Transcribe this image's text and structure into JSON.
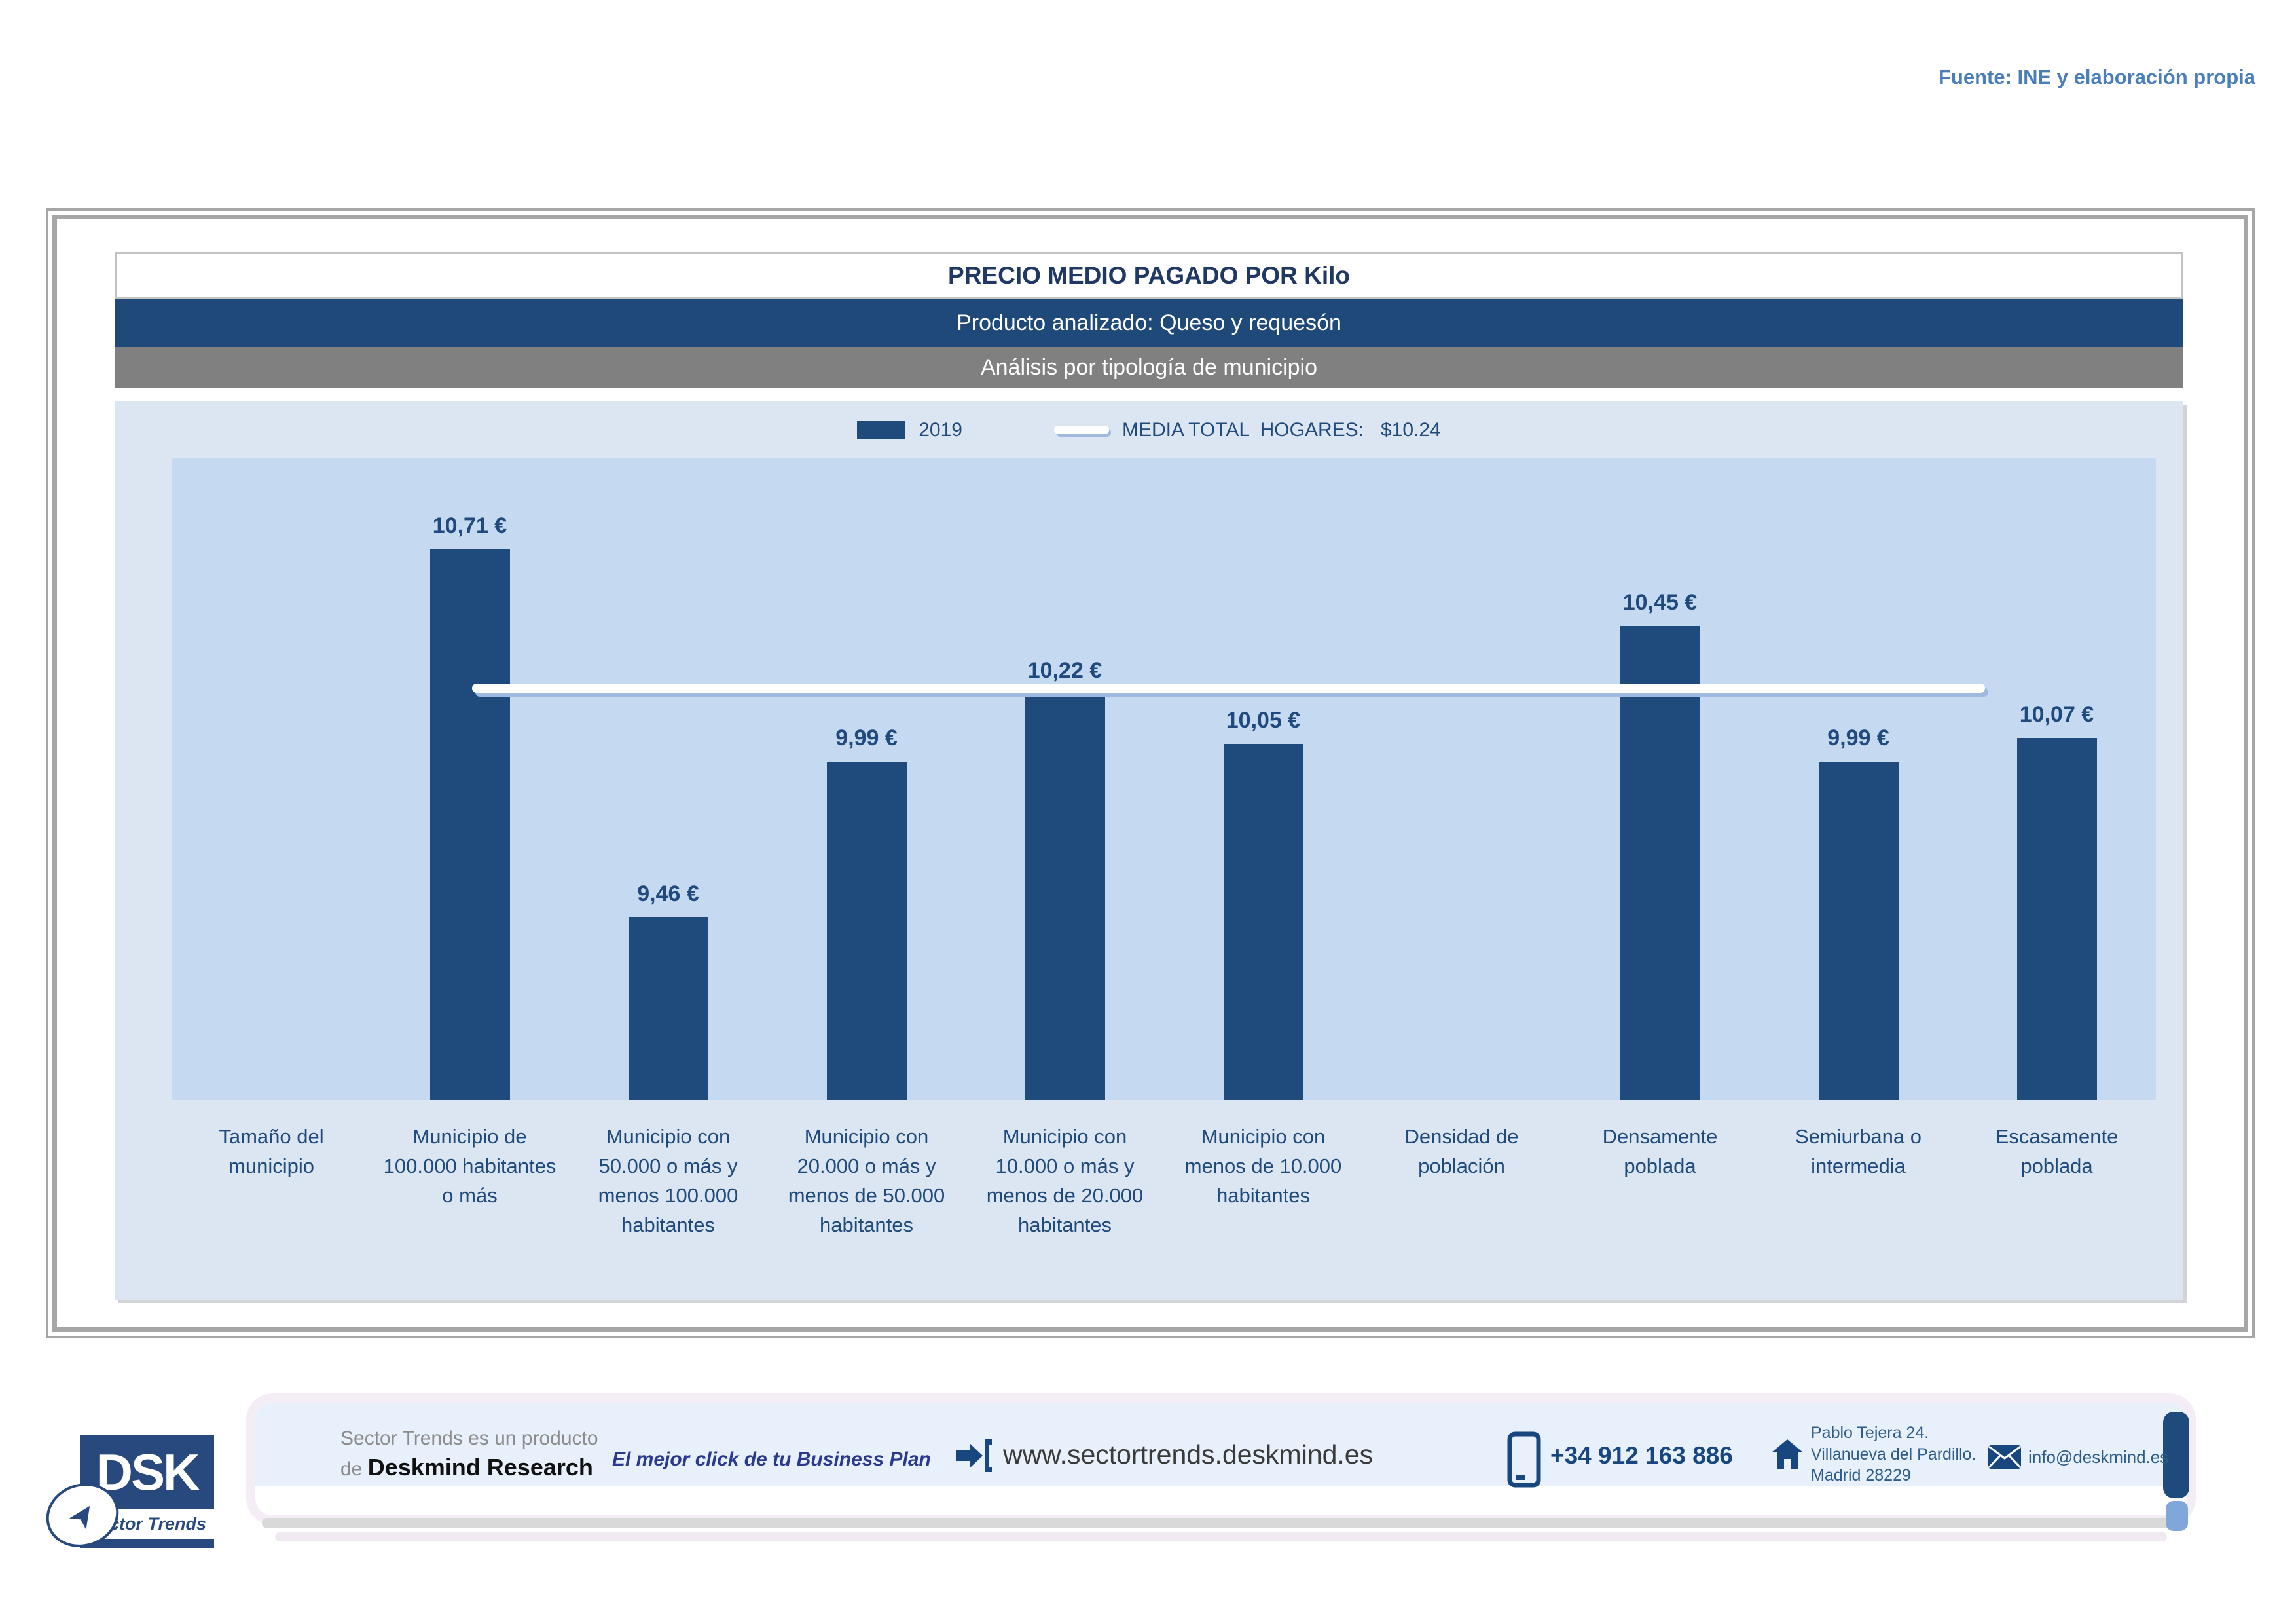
{
  "source_note": "Fuente: INE y elaboración propia",
  "report": {
    "title": "PRECIO MEDIO PAGADO POR Kilo",
    "subtitle_product": "Producto analizado: Queso y requesón",
    "subtitle_analysis": "Análisis por tipología de municipio"
  },
  "legend": {
    "series_label": "2019",
    "media_label": "MEDIA TOTAL  HOGARES:",
    "media_value": "$10.24"
  },
  "chart_data": {
    "type": "bar",
    "title": "PRECIO MEDIO PAGADO POR Kilo",
    "xlabel": "",
    "ylabel": "",
    "ylim": [
      8.84,
      11.02
    ],
    "grid": false,
    "legend_position": "top",
    "categories": [
      "Tamaño del municipio",
      "Municipio de 100.000 habitantes o más",
      "Municipio con 50.000 o más y menos 100.000 habitantes",
      "Municipio con 20.000 o más y menos de 50.000 habitantes",
      "Municipio con 10.000 o más y menos de 20.000 habitantes",
      "Municipio con menos de 10.000 habitantes",
      "Densidad de población",
      "Densamente poblada",
      "Semiurbana o intermedia",
      "Escasamente poblada"
    ],
    "series": [
      {
        "name": "2019",
        "values": [
          null,
          10.71,
          9.46,
          9.99,
          10.22,
          10.05,
          null,
          10.45,
          9.99,
          10.07
        ]
      }
    ],
    "value_labels": [
      "",
      "10,71 €",
      "9,46 €",
      "9,99 €",
      "10,22 €",
      "10,05 €",
      "",
      "10,45 €",
      "9,99 €",
      "10,07 €"
    ],
    "reference_line": {
      "name": "MEDIA TOTAL HOGARES",
      "value": 10.24,
      "label": "$10.24"
    },
    "colors": {
      "bar": "#1f4a7c",
      "plot_bg": "#c5d9f1",
      "chart_bg": "#dce6f2",
      "reference_line": "#ffffff"
    }
  },
  "footer": {
    "logo": {
      "acronym": "DSK",
      "brand": "Sector Trends",
      "plane_glyph": "➤"
    },
    "product_line1": "Sector Trends es un producto",
    "product_line2_prefix": "de ",
    "product_line2_bold": "Deskmind Research",
    "tagline": "El mejor click de tu Business Plan",
    "website": "www.sectortrends.deskmind.es",
    "phone": "+34 912 163 886",
    "address_line1": "Pablo Tejera 24.",
    "address_line2": "Villanueva del Pardillo.",
    "address_line3": "Madrid 28229",
    "email": "info@deskmind.es",
    "icons": {
      "enter": "arrow-into-bracket",
      "phone": "mobile-phone",
      "address": "home",
      "email": "envelope"
    }
  }
}
